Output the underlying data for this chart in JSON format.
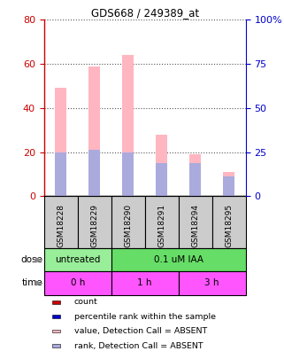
{
  "title": "GDS668 / 249389_at",
  "samples": [
    "GSM18228",
    "GSM18229",
    "GSM18290",
    "GSM18291",
    "GSM18294",
    "GSM18295"
  ],
  "values_absent": [
    49,
    59,
    64,
    28,
    19,
    11
  ],
  "rank_absent": [
    20,
    21,
    20,
    15,
    15,
    9
  ],
  "left_ylim": [
    0,
    80
  ],
  "right_ylim": [
    0,
    100
  ],
  "left_yticks": [
    0,
    20,
    40,
    60,
    80
  ],
  "right_yticks": [
    0,
    25,
    50,
    75,
    100
  ],
  "right_yticklabels": [
    "0",
    "25",
    "50",
    "75",
    "100%"
  ],
  "color_value_absent": "#FFB6C1",
  "color_rank_absent": "#AAAADD",
  "color_count": "#CC0000",
  "color_rank": "#0000CC",
  "dose_labels": [
    [
      "untreated",
      0,
      2
    ],
    [
      "0.1 uM IAA",
      2,
      6
    ]
  ],
  "dose_colors": [
    "#99EE99",
    "#66DD66"
  ],
  "time_labels": [
    [
      "0 h",
      0,
      2
    ],
    [
      "1 h",
      2,
      4
    ],
    [
      "3 h",
      4,
      6
    ]
  ],
  "time_color": "#FF55FF",
  "grid_color": "#555555",
  "left_ycolor": "#CC0000",
  "right_ycolor": "#0000CC",
  "plot_bg": "#FFFFFF",
  "sample_bg": "#CCCCCC",
  "bar_width": 0.35,
  "rank_bar_height": 2
}
